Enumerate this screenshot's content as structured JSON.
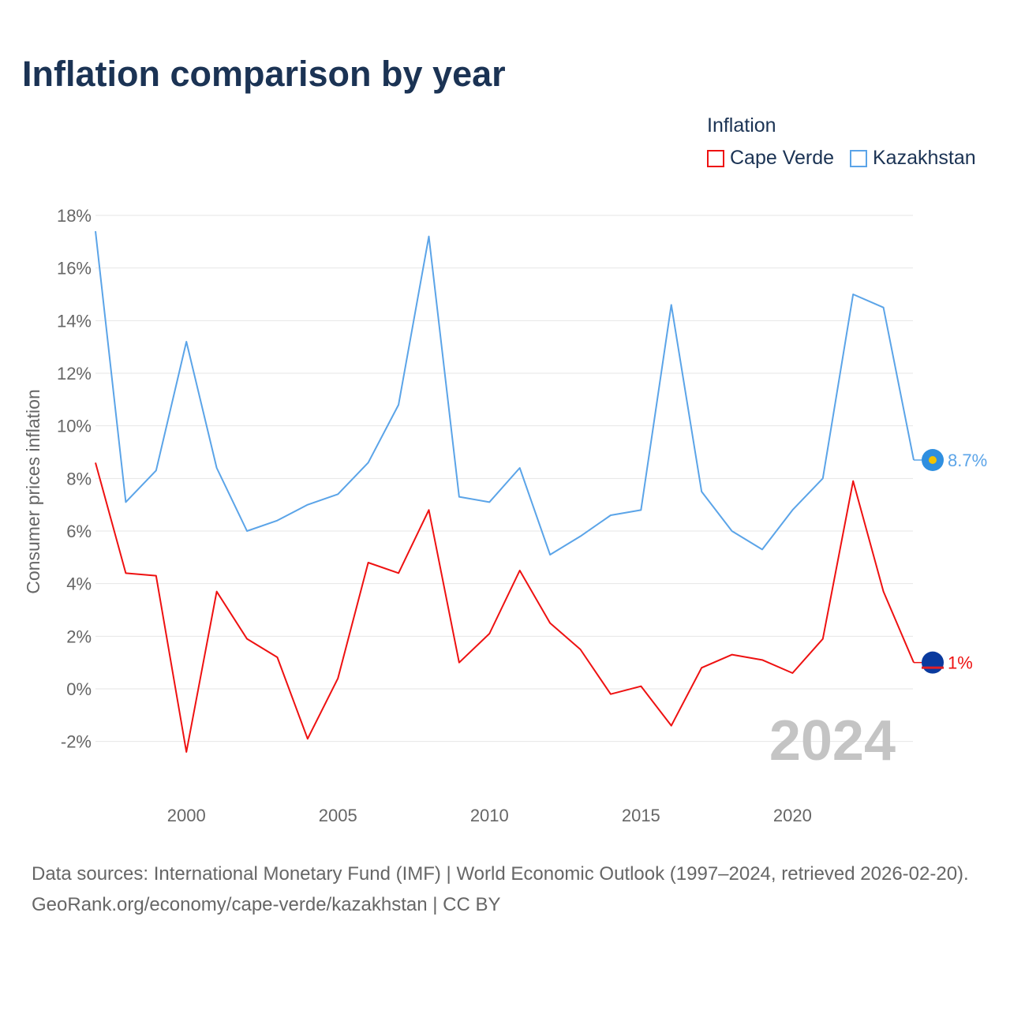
{
  "title": "Inflation comparison by year",
  "legend": {
    "title": "Inflation",
    "items": [
      {
        "label": "Cape Verde",
        "color": "#ee1111"
      },
      {
        "label": "Kazakhstan",
        "color": "#5ba4e8"
      }
    ]
  },
  "watermark_year": "2024",
  "chart_data": {
    "type": "line",
    "title": "Inflation comparison by year",
    "xlabel": "",
    "ylabel": "Consumer prices inflation",
    "xlim": [
      1997,
      2024
    ],
    "ylim": [
      -2,
      18
    ],
    "x_ticks": [
      2000,
      2005,
      2010,
      2015,
      2020
    ],
    "y_ticks": [
      -2,
      0,
      2,
      4,
      6,
      8,
      10,
      12,
      14,
      16,
      18
    ],
    "y_tick_labels": [
      "-2%",
      "0%",
      "2%",
      "4%",
      "6%",
      "8%",
      "10%",
      "12%",
      "14%",
      "16%",
      "18%"
    ],
    "grid": true,
    "x": [
      1997,
      1998,
      1999,
      2000,
      2001,
      2002,
      2003,
      2004,
      2005,
      2006,
      2007,
      2008,
      2009,
      2010,
      2011,
      2012,
      2013,
      2014,
      2015,
      2016,
      2017,
      2018,
      2019,
      2020,
      2021,
      2022,
      2023,
      2024
    ],
    "series": [
      {
        "name": "Kazakhstan",
        "color": "#5ba4e8",
        "end_label": "8.7%",
        "values": [
          17.4,
          7.1,
          8.3,
          13.2,
          8.4,
          6.0,
          6.4,
          7.0,
          7.4,
          8.6,
          10.8,
          17.2,
          7.3,
          7.1,
          8.4,
          5.1,
          5.8,
          6.6,
          6.8,
          14.6,
          7.5,
          6.0,
          5.3,
          6.8,
          8.0,
          15.0,
          14.5,
          8.7
        ]
      },
      {
        "name": "Cape Verde",
        "color": "#ee1111",
        "end_label": "1%",
        "values": [
          8.6,
          4.4,
          4.3,
          -2.4,
          3.7,
          1.9,
          1.2,
          -1.9,
          0.4,
          4.8,
          4.4,
          6.8,
          1.0,
          2.1,
          4.5,
          2.5,
          1.5,
          -0.2,
          0.1,
          -1.4,
          0.8,
          1.3,
          1.1,
          0.6,
          1.9,
          7.9,
          3.7,
          1.0
        ]
      }
    ]
  },
  "footer": {
    "sources": "Data sources: International Monetary Fund (IMF) | World Economic Outlook (1997–2024, retrieved 2026-02-20).",
    "link": "GeoRank.org/economy/cape-verde/kazakhstan | CC BY"
  }
}
